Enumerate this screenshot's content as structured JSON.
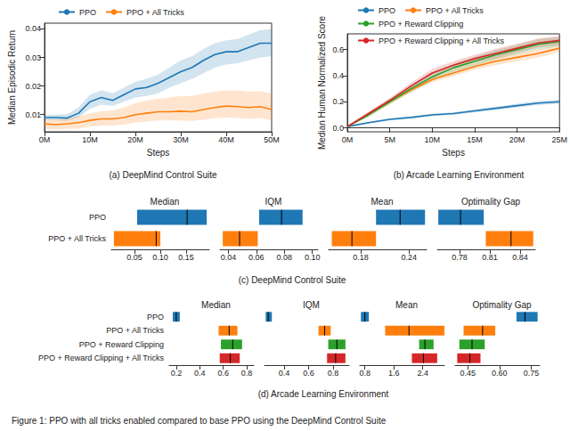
{
  "caption": "Figure 1: PPO with all tricks enabled compared to base PPO using the DeepMind Control Suite",
  "chart_data": [
    {
      "type": "line",
      "caption": "(a) DeepMind Control Suite",
      "xlabel": "Steps",
      "ylabel": "Median Episodic Return",
      "grid": false,
      "xlim": [
        0,
        50000000
      ],
      "ylim": [
        0.004,
        0.042
      ],
      "xticks": [
        {
          "value": 0,
          "label": "0M"
        },
        {
          "value": 10000000,
          "label": "10M"
        },
        {
          "value": 20000000,
          "label": "20M"
        },
        {
          "value": 30000000,
          "label": "30M"
        },
        {
          "value": 40000000,
          "label": "40M"
        },
        {
          "value": 50000000,
          "label": "50M"
        }
      ],
      "yticks": [
        0.01,
        0.02,
        0.03,
        0.04
      ],
      "x": [
        0,
        2500000,
        5000000,
        7500000,
        10000000,
        12500000,
        15000000,
        17500000,
        20000000,
        22500000,
        25000000,
        27500000,
        30000000,
        32500000,
        35000000,
        37500000,
        40000000,
        42500000,
        45000000,
        47500000,
        50000000
      ],
      "series": [
        {
          "name": "PPO",
          "color": "#1f77b4",
          "values": [
            0.009,
            0.009,
            0.0088,
            0.0105,
            0.0145,
            0.016,
            0.015,
            0.017,
            0.019,
            0.0195,
            0.021,
            0.023,
            0.025,
            0.0265,
            0.029,
            0.031,
            0.032,
            0.032,
            0.0335,
            0.035,
            0.035
          ],
          "lower": [
            0.0082,
            0.008,
            0.0078,
            0.009,
            0.012,
            0.0135,
            0.013,
            0.0145,
            0.016,
            0.0165,
            0.0175,
            0.0195,
            0.021,
            0.0225,
            0.0245,
            0.0265,
            0.0275,
            0.028,
            0.029,
            0.03,
            0.0305
          ],
          "upper": [
            0.0098,
            0.01,
            0.0102,
            0.0125,
            0.017,
            0.0185,
            0.0175,
            0.0195,
            0.0215,
            0.0225,
            0.024,
            0.0265,
            0.029,
            0.0305,
            0.033,
            0.035,
            0.036,
            0.0365,
            0.038,
            0.0395,
            0.04
          ]
        },
        {
          "name": "PPO + All Tricks",
          "color": "#ff7f0e",
          "values": [
            0.0068,
            0.0065,
            0.0068,
            0.0072,
            0.008,
            0.0085,
            0.0085,
            0.009,
            0.01,
            0.0105,
            0.011,
            0.011,
            0.0112,
            0.011,
            0.0118,
            0.0125,
            0.013,
            0.0128,
            0.0125,
            0.0128,
            0.0118
          ],
          "lower": [
            0.005,
            0.0048,
            0.005,
            0.0052,
            0.0058,
            0.0062,
            0.0062,
            0.0066,
            0.0072,
            0.0076,
            0.008,
            0.008,
            0.008,
            0.0078,
            0.0082,
            0.0088,
            0.009,
            0.0088,
            0.0085,
            0.0088,
            0.008
          ],
          "upper": [
            0.0085,
            0.0083,
            0.0087,
            0.0094,
            0.0105,
            0.0112,
            0.0115,
            0.0125,
            0.014,
            0.015,
            0.0155,
            0.016,
            0.0165,
            0.0165,
            0.0175,
            0.018,
            0.0185,
            0.0185,
            0.018,
            0.0182,
            0.0175
          ]
        }
      ]
    },
    {
      "type": "line",
      "caption": "(b) Arcade Learning Environment",
      "xlabel": "Steps",
      "ylabel": "Median Human Normalized Score",
      "grid": false,
      "xlim": [
        0,
        25000000
      ],
      "ylim": [
        -0.03,
        0.72
      ],
      "xticks": [
        {
          "value": 0,
          "label": "0M"
        },
        {
          "value": 5000000,
          "label": "5M"
        },
        {
          "value": 10000000,
          "label": "10M"
        },
        {
          "value": 15000000,
          "label": "15M"
        },
        {
          "value": 20000000,
          "label": "20M"
        },
        {
          "value": 25000000,
          "label": "25M"
        }
      ],
      "yticks": [
        {
          "value": 0,
          "label": "0.0"
        },
        0.2,
        0.4,
        0.6
      ],
      "x": [
        0,
        2500000,
        5000000,
        7500000,
        10000000,
        12500000,
        15000000,
        17500000,
        20000000,
        22500000,
        25000000
      ],
      "series": [
        {
          "name": "PPO",
          "color": "#1f77b4",
          "values": [
            0.01,
            0.04,
            0.065,
            0.08,
            0.1,
            0.11,
            0.13,
            0.15,
            0.17,
            0.19,
            0.2
          ],
          "lower": [
            0.005,
            0.033,
            0.057,
            0.072,
            0.09,
            0.1,
            0.118,
            0.137,
            0.155,
            0.175,
            0.185
          ],
          "upper": [
            0.015,
            0.047,
            0.073,
            0.088,
            0.11,
            0.12,
            0.142,
            0.163,
            0.185,
            0.205,
            0.215
          ]
        },
        {
          "name": "PPO + All Tricks",
          "color": "#ff7f0e",
          "values": [
            0.01,
            0.1,
            0.2,
            0.29,
            0.37,
            0.42,
            0.47,
            0.51,
            0.54,
            0.57,
            0.61
          ],
          "lower": [
            0.005,
            0.09,
            0.185,
            0.27,
            0.35,
            0.395,
            0.445,
            0.48,
            0.51,
            0.54,
            0.58
          ],
          "upper": [
            0.015,
            0.11,
            0.215,
            0.31,
            0.39,
            0.445,
            0.495,
            0.54,
            0.57,
            0.6,
            0.64
          ]
        },
        {
          "name": "PPO + Reward Clipping",
          "color": "#2ca02c",
          "values": [
            0.01,
            0.1,
            0.2,
            0.3,
            0.39,
            0.46,
            0.51,
            0.56,
            0.6,
            0.64,
            0.66
          ],
          "lower": [
            0.005,
            0.085,
            0.18,
            0.275,
            0.36,
            0.43,
            0.475,
            0.525,
            0.565,
            0.6,
            0.625
          ],
          "upper": [
            0.015,
            0.115,
            0.22,
            0.325,
            0.42,
            0.49,
            0.545,
            0.595,
            0.635,
            0.68,
            0.695
          ]
        },
        {
          "name": "PPO + Reward Clipping + All Tricks",
          "color": "#d62728",
          "values": [
            0.01,
            0.11,
            0.21,
            0.32,
            0.42,
            0.48,
            0.53,
            0.57,
            0.61,
            0.65,
            0.67
          ],
          "lower": [
            0.005,
            0.095,
            0.19,
            0.295,
            0.39,
            0.45,
            0.5,
            0.535,
            0.575,
            0.615,
            0.635
          ],
          "upper": [
            0.015,
            0.125,
            0.23,
            0.345,
            0.45,
            0.51,
            0.56,
            0.605,
            0.645,
            0.685,
            0.705
          ]
        }
      ]
    },
    {
      "type": "interval",
      "caption": "(c) DeepMind Control Suite",
      "rows": [
        "PPO",
        "PPO + All Tricks"
      ],
      "colors": [
        "#1f77b4",
        "#ff7f0e"
      ],
      "panels": [
        {
          "title": "Median",
          "xlim": [
            0.005,
            0.195
          ],
          "xticks": [
            0.05,
            {
              "value": 0.1,
              "label": "0.10"
            },
            0.15
          ],
          "low": [
            0.055,
            0.01
          ],
          "high": [
            0.19,
            0.1
          ],
          "estimate": [
            0.152,
            0.092
          ]
        },
        {
          "title": "IQM",
          "xlim": [
            0.034,
            0.104
          ],
          "xticks": [
            0.04,
            0.06,
            0.08,
            {
              "value": 0.1,
              "label": "0.10"
            }
          ],
          "low": [
            0.062,
            0.036
          ],
          "high": [
            0.093,
            0.061
          ],
          "estimate": [
            0.078,
            0.048
          ]
        },
        {
          "title": "Mean",
          "xlim": [
            0.14,
            0.262
          ],
          "xticks": [
            0.18,
            0.24
          ],
          "low": [
            0.199,
            0.144
          ],
          "high": [
            0.26,
            0.199
          ],
          "estimate": [
            0.229,
            0.169
          ]
        },
        {
          "title": "Optimality Gap",
          "xlim": [
            0.758,
            0.855
          ],
          "xticks": [
            0.78,
            0.81,
            0.84
          ],
          "low": [
            0.759,
            0.806
          ],
          "high": [
            0.804,
            0.853
          ],
          "estimate": [
            0.781,
            0.831
          ]
        }
      ]
    },
    {
      "type": "interval",
      "caption": "(d) Arcade Learning Environment",
      "rows": [
        "PPO",
        "PPO + All Tricks",
        "PPO + Reward Clipping",
        "PPO + Reward Clipping + All Tricks"
      ],
      "colors": [
        "#1f77b4",
        "#ff7f0e",
        "#2ca02c",
        "#d62728"
      ],
      "panels": [
        {
          "title": "Median",
          "xlim": [
            0.14,
            0.86
          ],
          "xticks": [
            0.2,
            0.4,
            0.6,
            0.8
          ],
          "low": [
            0.17,
            0.56,
            0.58,
            0.57
          ],
          "high": [
            0.23,
            0.72,
            0.76,
            0.74
          ],
          "estimate": [
            0.2,
            0.65,
            0.68,
            0.66
          ]
        },
        {
          "title": "IQM",
          "xlim": [
            0.24,
            0.93
          ],
          "xticks": [
            0.4,
            0.6,
            0.8
          ],
          "low": [
            0.25,
            0.68,
            0.76,
            0.75
          ],
          "high": [
            0.3,
            0.78,
            0.9,
            0.9
          ],
          "estimate": [
            0.27,
            0.73,
            0.83,
            0.82
          ]
        },
        {
          "title": "Mean",
          "xlim": [
            0.66,
            3.0
          ],
          "xticks": [
            0.8,
            1.6,
            2.4
          ],
          "low": [
            0.69,
            1.36,
            2.3,
            2.1
          ],
          "high": [
            0.91,
            3.0,
            2.7,
            2.8
          ],
          "estimate": [
            0.8,
            2.02,
            2.46,
            2.42
          ]
        },
        {
          "title": "Optimality Gap",
          "xlim": [
            0.39,
            0.79
          ],
          "xticks": [
            0.45,
            {
              "value": 0.6,
              "label": "0.60"
            },
            0.75
          ],
          "low": [
            0.68,
            0.43,
            0.41,
            0.4
          ],
          "high": [
            0.78,
            0.58,
            0.53,
            0.51
          ],
          "estimate": [
            0.72,
            0.52,
            0.47,
            0.46
          ]
        }
      ]
    }
  ]
}
